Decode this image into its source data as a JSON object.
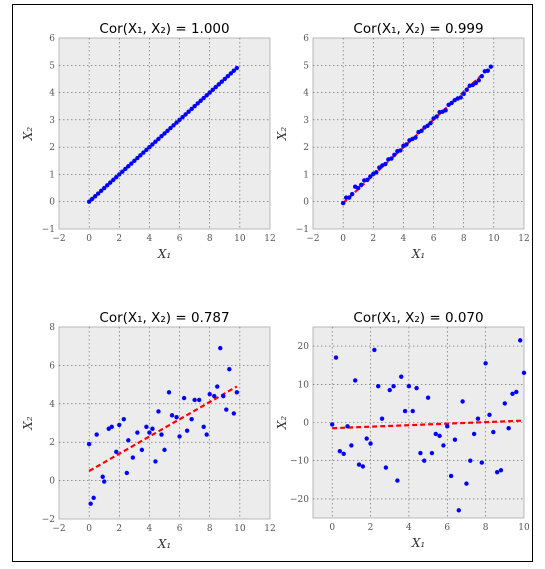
{
  "chart_data": [
    {
      "type": "scatter",
      "title": "Cor(X₁, X₂) = 1.000",
      "xlabel": "X₁",
      "ylabel": "X₂",
      "xlim": [
        -2,
        12
      ],
      "ylim": [
        -1,
        6
      ],
      "xticks": [
        "−2",
        "0",
        "2",
        "4",
        "6",
        "8",
        "10",
        "12"
      ],
      "yticks": [
        "−1",
        "0",
        "1",
        "2",
        "3",
        "4",
        "5",
        "6"
      ],
      "grid": true,
      "fit_line": {
        "x": [
          0,
          9.8
        ],
        "y": [
          0.0,
          4.9
        ],
        "color": "#ff0000",
        "style": "dashed"
      },
      "points_color": "#0000ff",
      "x": [
        0.0,
        0.2,
        0.4,
        0.6,
        0.8,
        1.0,
        1.2,
        1.4,
        1.6,
        1.8,
        2.0,
        2.2,
        2.4,
        2.6,
        2.8,
        3.0,
        3.2,
        3.4,
        3.6,
        3.8,
        4.0,
        4.2,
        4.4,
        4.6,
        4.8,
        5.0,
        5.2,
        5.4,
        5.6,
        5.8,
        6.0,
        6.2,
        6.4,
        6.6,
        6.8,
        7.0,
        7.2,
        7.4,
        7.6,
        7.8,
        8.0,
        8.2,
        8.4,
        8.6,
        8.8,
        9.0,
        9.2,
        9.4,
        9.6,
        9.8
      ],
      "y": [
        0.0,
        0.1,
        0.2,
        0.3,
        0.4,
        0.5,
        0.6,
        0.7,
        0.8,
        0.9,
        1.0,
        1.1,
        1.2,
        1.3,
        1.4,
        1.5,
        1.6,
        1.7,
        1.8,
        1.9,
        2.0,
        2.1,
        2.2,
        2.3,
        2.4,
        2.5,
        2.6,
        2.7,
        2.8,
        2.9,
        3.0,
        3.1,
        3.2,
        3.3,
        3.4,
        3.5,
        3.6,
        3.7,
        3.8,
        3.9,
        4.0,
        4.1,
        4.2,
        4.3,
        4.4,
        4.5,
        4.6,
        4.7,
        4.8,
        4.9
      ]
    },
    {
      "type": "scatter",
      "title": "Cor(X₁, X₂) = 0.999",
      "xlabel": "X₁",
      "ylabel": "X₂",
      "xlim": [
        -2,
        12
      ],
      "ylim": [
        -1,
        6
      ],
      "xticks": [
        "−2",
        "0",
        "2",
        "4",
        "6",
        "8",
        "10",
        "12"
      ],
      "yticks": [
        "−1",
        "0",
        "1",
        "2",
        "3",
        "4",
        "5",
        "6"
      ],
      "grid": true,
      "fit_line": {
        "x": [
          0,
          9.8
        ],
        "y": [
          -0.05,
          4.95
        ],
        "color": "#ff0000",
        "style": "dashed"
      },
      "points_color": "#0000ff",
      "x": [
        0.0,
        0.2,
        0.4,
        0.6,
        0.8,
        1.0,
        1.2,
        1.4,
        1.6,
        1.8,
        2.0,
        2.2,
        2.4,
        2.6,
        2.8,
        3.0,
        3.2,
        3.4,
        3.6,
        3.8,
        4.0,
        4.2,
        4.4,
        4.6,
        4.8,
        5.0,
        5.2,
        5.4,
        5.6,
        5.8,
        6.0,
        6.2,
        6.4,
        6.6,
        6.8,
        7.0,
        7.2,
        7.4,
        7.6,
        7.8,
        8.0,
        8.2,
        8.4,
        8.6,
        8.8,
        9.0,
        9.2,
        9.4,
        9.6,
        9.8
      ],
      "y": [
        -0.05,
        0.15,
        0.15,
        0.28,
        0.55,
        0.5,
        0.62,
        0.78,
        0.8,
        0.92,
        1.02,
        1.08,
        1.25,
        1.33,
        1.38,
        1.55,
        1.58,
        1.72,
        1.85,
        1.88,
        2.05,
        2.1,
        2.25,
        2.3,
        2.35,
        2.55,
        2.6,
        2.72,
        2.78,
        2.88,
        3.05,
        3.12,
        3.28,
        3.3,
        3.35,
        3.55,
        3.62,
        3.72,
        3.78,
        3.82,
        3.95,
        4.1,
        4.25,
        4.28,
        4.35,
        4.45,
        4.6,
        4.78,
        4.8,
        4.95
      ]
    },
    {
      "type": "scatter",
      "title": "Cor(X₁, X₂) = 0.787",
      "xlabel": "X₁",
      "ylabel": "X₂",
      "xlim": [
        -2,
        12
      ],
      "ylim": [
        -2,
        8
      ],
      "xticks": [
        "−2",
        "0",
        "2",
        "4",
        "6",
        "8",
        "10",
        "12"
      ],
      "yticks": [
        "−2",
        "0",
        "2",
        "4",
        "6",
        "8"
      ],
      "grid": true,
      "fit_line": {
        "x": [
          0,
          9.8
        ],
        "y": [
          0.5,
          4.9
        ],
        "color": "#ff0000",
        "style": "dashed"
      },
      "points_color": "#0000ff",
      "x": [
        0.0,
        0.1,
        0.3,
        0.5,
        0.9,
        1.0,
        1.3,
        1.5,
        1.8,
        2.0,
        2.3,
        2.5,
        2.6,
        2.9,
        3.2,
        3.5,
        3.8,
        4.0,
        4.2,
        4.4,
        4.6,
        4.8,
        5.0,
        5.3,
        5.5,
        5.8,
        6.0,
        6.3,
        6.5,
        6.8,
        7.0,
        7.3,
        7.6,
        7.8,
        8.0,
        8.3,
        8.5,
        8.7,
        8.9,
        9.1,
        9.3,
        9.6,
        9.8
      ],
      "y": [
        1.9,
        -1.2,
        -0.9,
        2.4,
        0.2,
        -0.05,
        2.7,
        2.8,
        1.5,
        2.9,
        3.2,
        0.4,
        2.1,
        1.2,
        2.5,
        1.6,
        2.8,
        2.5,
        2.7,
        1.0,
        3.6,
        2.4,
        1.6,
        4.6,
        3.4,
        3.3,
        2.3,
        4.3,
        2.6,
        3.2,
        4.2,
        4.2,
        2.8,
        2.4,
        4.5,
        4.4,
        4.9,
        6.9,
        4.4,
        3.7,
        5.8,
        3.5,
        4.6
      ]
    },
    {
      "type": "scatter",
      "title": "Cor(X₁, X₂) = 0.070",
      "xlabel": "X₁",
      "ylabel": "X₂",
      "xlim": [
        -1,
        10
      ],
      "ylim": [
        -25,
        25
      ],
      "xticks": [
        "0",
        "2",
        "4",
        "6",
        "8",
        "10"
      ],
      "yticks": [
        "−20",
        "−10",
        "0",
        "10",
        "20"
      ],
      "grid": true,
      "fit_line": {
        "x": [
          0,
          10
        ],
        "y": [
          -1.5,
          0.5
        ],
        "color": "#ff0000",
        "style": "dashed"
      },
      "points_color": "#0000ff",
      "x": [
        0.0,
        0.2,
        0.4,
        0.6,
        0.8,
        1.0,
        1.2,
        1.4,
        1.6,
        1.8,
        2.0,
        2.2,
        2.4,
        2.6,
        2.8,
        3.0,
        3.2,
        3.4,
        3.6,
        3.8,
        4.0,
        4.2,
        4.4,
        4.6,
        4.8,
        5.0,
        5.2,
        5.4,
        5.6,
        5.8,
        6.0,
        6.2,
        6.4,
        6.6,
        6.8,
        7.0,
        7.2,
        7.4,
        7.6,
        7.8,
        8.0,
        8.2,
        8.4,
        8.6,
        8.8,
        9.0,
        9.2,
        9.4,
        9.6,
        9.8,
        10.0
      ],
      "y": [
        -0.5,
        17.0,
        -7.5,
        -8.2,
        -1.0,
        -6.0,
        11.0,
        -11.0,
        -11.5,
        -4.2,
        -5.5,
        19.0,
        9.5,
        1.0,
        -11.8,
        8.5,
        9.5,
        -15.2,
        12.0,
        3.0,
        9.5,
        3.0,
        9.0,
        -8.0,
        -10.0,
        6.5,
        -8.0,
        -3.0,
        -3.5,
        -6.0,
        -1.0,
        -14.0,
        -4.5,
        -23.0,
        5.5,
        -16.0,
        -10.0,
        -3.0,
        1.0,
        -10.5,
        15.5,
        2.0,
        -2.5,
        -13.0,
        -12.5,
        5.0,
        -1.5,
        7.5,
        8.0,
        21.5,
        13.0
      ]
    }
  ]
}
